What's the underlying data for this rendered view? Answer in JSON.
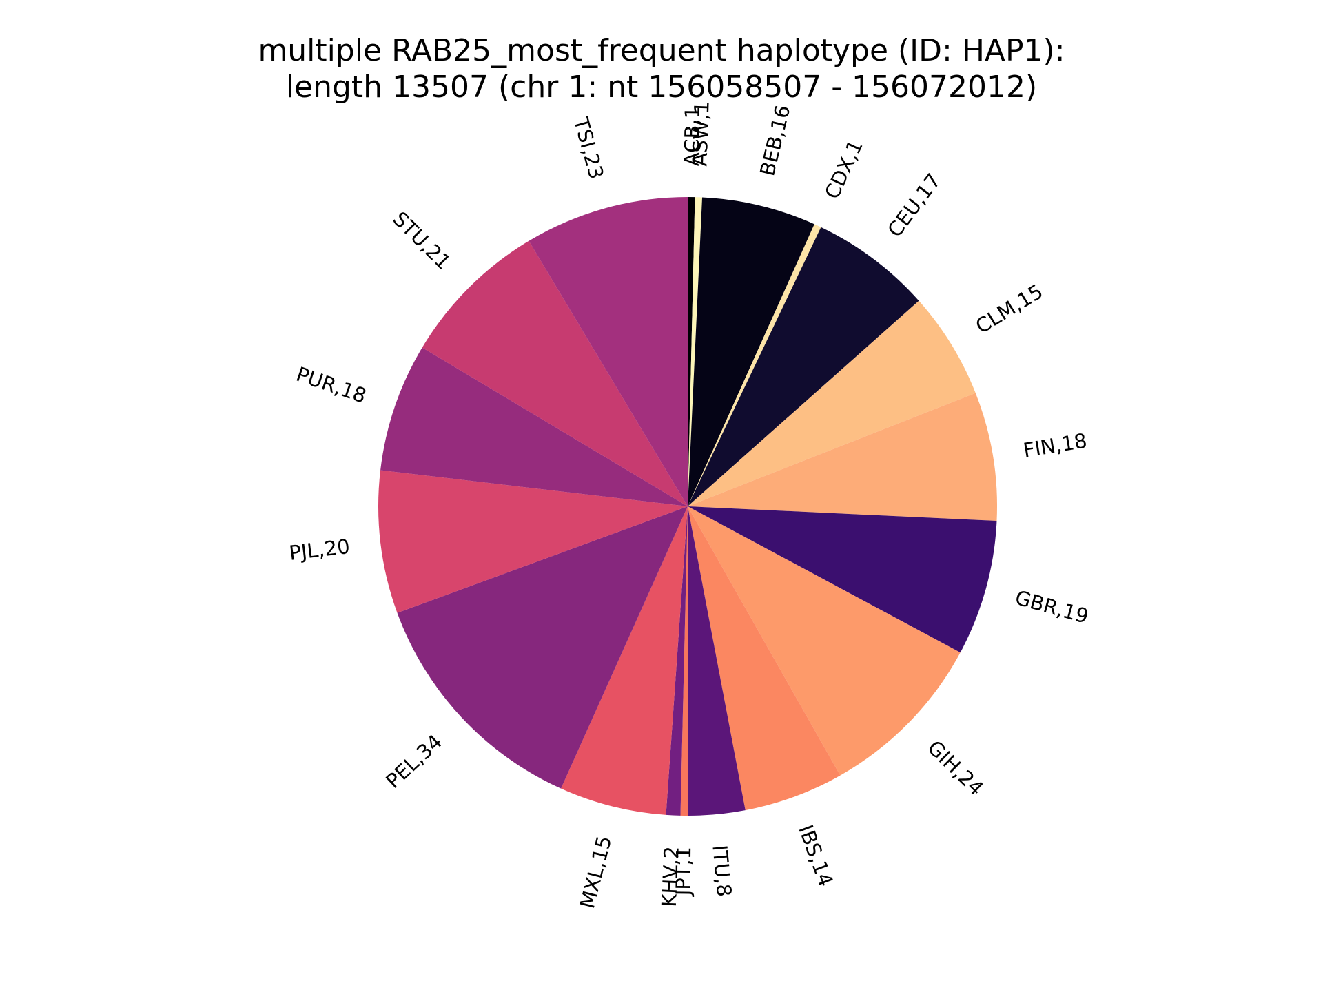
{
  "chart_data": {
    "type": "pie",
    "title": "multiple RAB25_most_frequent haplotype (ID: HAP1):",
    "subtitle": "length 13507 (chr 1: nt 156058507 - 156072012)",
    "label_format": "category,count",
    "start_angle": "top (12 o'clock)",
    "direction": "clockwise",
    "slices": [
      {
        "category": "ACB",
        "value": 1,
        "label": "ACB,1",
        "color": "#000004"
      },
      {
        "category": "ASW",
        "value": 1,
        "label": "ASW,1",
        "color": "#fcf5b8"
      },
      {
        "category": "BEB",
        "value": 16,
        "label": "BEB,16",
        "color": "#050416"
      },
      {
        "category": "CDX",
        "value": 1,
        "label": "CDX,1",
        "color": "#fce4a8"
      },
      {
        "category": "CEU",
        "value": 17,
        "label": "CEU,17",
        "color": "#100c2f"
      },
      {
        "category": "CLM",
        "value": 15,
        "label": "CLM,15",
        "color": "#fdbf84"
      },
      {
        "category": "FIN",
        "value": 18,
        "label": "FIN,18",
        "color": "#fdac78"
      },
      {
        "category": "GBR",
        "value": 19,
        "label": "GBR,19",
        "color": "#3b0f6f"
      },
      {
        "category": "GIH",
        "value": 24,
        "label": "GIH,24",
        "color": "#fd9a6a"
      },
      {
        "category": "IBS",
        "value": 14,
        "label": "IBS,14",
        "color": "#fb8761"
      },
      {
        "category": "ITU",
        "value": 8,
        "label": "ITU,8",
        "color": "#5b1679"
      },
      {
        "category": "JPT",
        "value": 1,
        "label": "JPT,1",
        "color": "#f8765c"
      },
      {
        "category": "KHV",
        "value": 2,
        "label": "KHV,2",
        "color": "#721f81"
      },
      {
        "category": "MXL",
        "value": 15,
        "label": "MXL,15",
        "color": "#e75263"
      },
      {
        "category": "PEL",
        "value": 34,
        "label": "PEL,34",
        "color": "#86277d"
      },
      {
        "category": "PJL",
        "value": 20,
        "label": "PJL,20",
        "color": "#d8456c"
      },
      {
        "category": "PUR",
        "value": 18,
        "label": "PUR,18",
        "color": "#962c7d"
      },
      {
        "category": "STU",
        "value": 21,
        "label": "STU,21",
        "color": "#c73b70"
      },
      {
        "category": "TSI",
        "value": 23,
        "label": "TSI,23",
        "color": "#a3307e"
      }
    ]
  }
}
